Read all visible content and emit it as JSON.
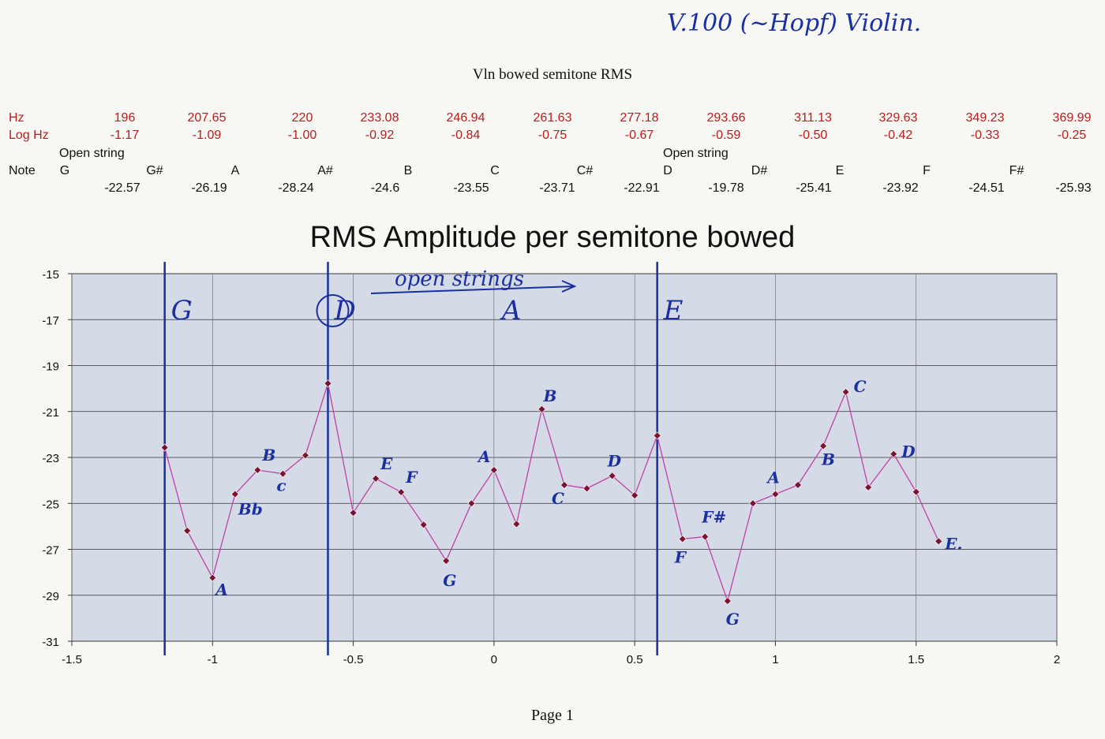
{
  "page": {
    "title": "Vln bowed semitone RMS",
    "footer": "Page 1",
    "handwritten_header": "V.100 (~Hopf) Violin."
  },
  "table": {
    "hz_label": "Hz",
    "loghz_label": "Log Hz",
    "note_label": "Note",
    "open_string_label": "Open string",
    "hz": [
      "196",
      "207.65",
      "220",
      "233.08",
      "246.94",
      "261.63",
      "277.18",
      "293.66",
      "311.13",
      "329.63",
      "349.23",
      "369.99"
    ],
    "log_hz": [
      "-1.17",
      "-1.09",
      "-1.00",
      "-0.92",
      "-0.84",
      "-0.75",
      "-0.67",
      "-0.59",
      "-0.50",
      "-0.42",
      "-0.33",
      "-0.25"
    ],
    "notes": [
      "G",
      "G#",
      "A",
      "A#",
      "B",
      "C",
      "C#",
      "D",
      "D#",
      "E",
      "F",
      "F#"
    ],
    "rms": [
      "-22.57",
      "-26.19",
      "-28.24",
      "-24.6",
      "-23.55",
      "-23.71",
      "-22.91",
      "-19.78",
      "-25.41",
      "-23.92",
      "-24.51",
      "-25.93"
    ]
  },
  "colors": {
    "data_red": "#b81d1d",
    "plot_bg": "#d5dbe6",
    "series_line": "#c040a8",
    "marker": "#7a1232",
    "annotation_blue": "#1a2fa0"
  },
  "chart_data": {
    "type": "line",
    "title": "RMS Amplitude per semitone bowed",
    "xlabel": "",
    "ylabel": "",
    "xlim": [
      -1.5,
      2
    ],
    "ylim": [
      -31,
      -15
    ],
    "x_ticks": [
      "-1.5",
      "-1",
      "-0.5",
      "0",
      "0.5",
      "1",
      "1.5",
      "2"
    ],
    "y_ticks": [
      "-15",
      "-17",
      "-19",
      "-21",
      "-23",
      "-25",
      "-27",
      "-29",
      "-31"
    ],
    "grid": "horizontal",
    "series": [
      {
        "x": [
          -1.17,
          -1.09,
          -1.0,
          -0.92,
          -0.84,
          -0.75,
          -0.67,
          -0.59,
          -0.5,
          -0.42,
          -0.33,
          -0.25,
          -0.17,
          -0.08,
          0.0,
          0.08,
          0.17,
          0.25,
          0.33,
          0.42,
          0.5,
          0.58,
          0.67,
          0.75,
          0.83,
          0.92,
          1.0,
          1.08,
          1.17,
          1.25,
          1.33,
          1.42,
          1.5,
          1.58
        ],
        "y": [
          -22.57,
          -26.19,
          -28.24,
          -24.6,
          -23.55,
          -23.71,
          -22.91,
          -19.78,
          -25.41,
          -23.92,
          -24.51,
          -25.93,
          -27.5,
          -25.0,
          -23.55,
          -25.9,
          -20.9,
          -24.2,
          -24.35,
          -23.8,
          -24.65,
          -22.05,
          -26.55,
          -26.45,
          -29.25,
          -25.0,
          -24.6,
          -24.2,
          -22.5,
          -20.15,
          -24.3,
          -22.85,
          -24.5,
          -26.65
        ]
      }
    ],
    "open_strings": [
      {
        "x": -1.17,
        "label": "G"
      },
      {
        "x": -0.59,
        "label": "D"
      },
      {
        "x": 0.0,
        "label": "A"
      },
      {
        "x": 0.58,
        "label": "E"
      }
    ],
    "annotations": [
      {
        "text": "A",
        "x": -1.0,
        "y": -28.24
      },
      {
        "text": "Bb",
        "x": -0.92,
        "y": -24.6
      },
      {
        "text": "B",
        "x": -0.84,
        "y": -23.55
      },
      {
        "text": "c",
        "x": -0.75,
        "y": -23.71
      },
      {
        "text": "E",
        "x": -0.42,
        "y": -23.92
      },
      {
        "text": "F",
        "x": -0.33,
        "y": -24.51
      },
      {
        "text": "G",
        "x": -0.17,
        "y": -27.5
      },
      {
        "text": "A",
        "x": 0.0,
        "y": -23.55
      },
      {
        "text": "B",
        "x": 0.17,
        "y": -20.9
      },
      {
        "text": "C",
        "x": 0.25,
        "y": -24.2
      },
      {
        "text": "D",
        "x": 0.42,
        "y": -23.8
      },
      {
        "text": "F",
        "x": 0.67,
        "y": -26.55
      },
      {
        "text": "F#",
        "x": 0.75,
        "y": -26.45
      },
      {
        "text": "G",
        "x": 0.83,
        "y": -29.25
      },
      {
        "text": "A",
        "x": 1.0,
        "y": -24.6
      },
      {
        "text": "B",
        "x": 1.17,
        "y": -22.5
      },
      {
        "text": "C",
        "x": 1.25,
        "y": -20.15
      },
      {
        "text": "D",
        "x": 1.42,
        "y": -22.85
      },
      {
        "text": "E.",
        "x": 1.58,
        "y": -26.65
      }
    ],
    "arrow_note": "open strings"
  }
}
